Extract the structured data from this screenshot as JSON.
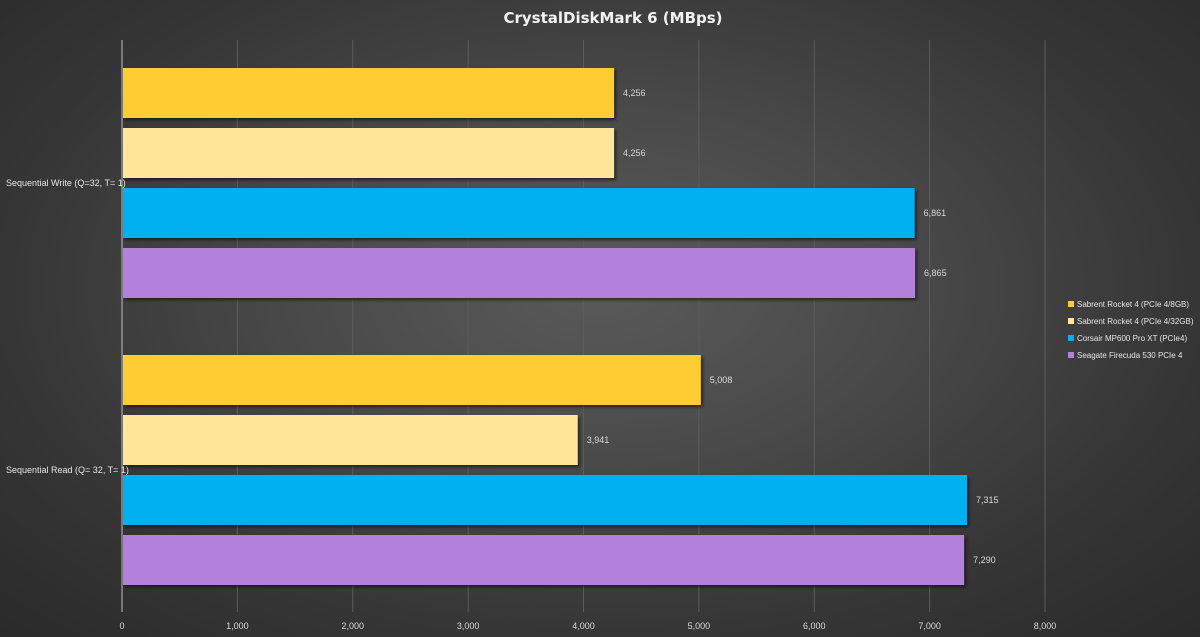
{
  "chart_data": {
    "type": "bar",
    "orientation": "horizontal",
    "title": "CrystalDiskMark  6 (MBps)",
    "categories": [
      "Sequential Write (Q=32, T= 1)",
      "Sequential Read (Q= 32, T= 1)"
    ],
    "series": [
      {
        "name": "Sabrent Rocket 4 (PCIe 4/8GB)",
        "color": "#FFCC33",
        "values": [
          4256,
          5008
        ],
        "labels": [
          "4,256",
          "5,008"
        ]
      },
      {
        "name": "Sabrent Rocket 4 (PCIe 4/32GB)",
        "color": "#FFE699",
        "values": [
          4256,
          3941
        ],
        "labels": [
          "4,256",
          "3,941"
        ]
      },
      {
        "name": "Corsair MP600 Pro XT  (PCIe4)",
        "color": "#00B0F0",
        "values": [
          6861,
          7315
        ],
        "labels": [
          "6,861",
          "7,315"
        ]
      },
      {
        "name": "Seagate Firecuda 530 PCIe 4",
        "color": "#B381DB",
        "values": [
          6865,
          7290
        ],
        "labels": [
          "6,865",
          "7,290"
        ]
      }
    ],
    "xlim": [
      0,
      8000
    ],
    "xticks": [
      0,
      1000,
      2000,
      3000,
      4000,
      5000,
      6000,
      7000,
      8000
    ],
    "xtick_labels": [
      "0",
      "1,000",
      "2,000",
      "3,000",
      "4,000",
      "5,000",
      "6,000",
      "7,000",
      "8,000"
    ],
    "grid": true,
    "legend_position": "right"
  }
}
